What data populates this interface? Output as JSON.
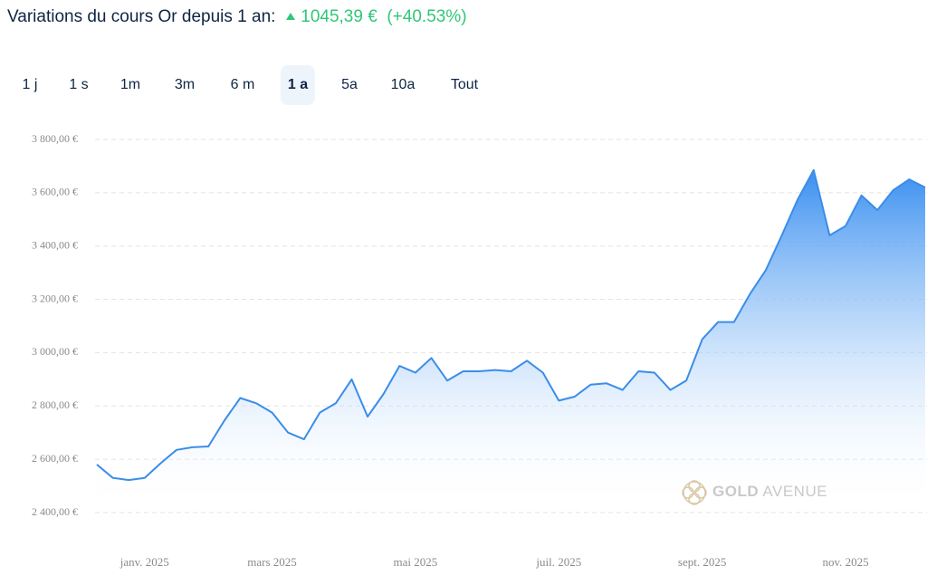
{
  "header": {
    "title": "Variations du cours Or depuis 1 an:",
    "change": "1045,39 €",
    "percent": "(+40.53%)"
  },
  "tabs": [
    "1 j",
    "1 s",
    "1m",
    "3m",
    "6 m",
    "1 a",
    "5a",
    "10a",
    "Tout"
  ],
  "active_tab": 5,
  "logo": {
    "bold": "GOLD",
    "light": "AVENUE"
  },
  "chart_data": {
    "type": "area",
    "color": "#3b8de8",
    "categories": [
      null,
      null,
      null,
      "janv. 2025",
      null,
      null,
      null,
      null,
      null,
      null,
      null,
      "mars 2025",
      null,
      null,
      null,
      null,
      null,
      null,
      null,
      null,
      "mai 2025",
      null,
      null,
      null,
      null,
      null,
      null,
      null,
      null,
      "juil. 2025",
      null,
      null,
      null,
      null,
      null,
      null,
      null,
      null,
      "sept. 2025",
      null,
      null,
      null,
      null,
      null,
      null,
      null,
      null,
      "nov. 2025",
      null,
      null,
      null,
      null,
      null
    ],
    "values": [
      2580,
      2530,
      2522,
      2530,
      2585,
      2635,
      2645,
      2648,
      2745,
      2830,
      2810,
      2775,
      2700,
      2675,
      2775,
      2810,
      2900,
      2760,
      2845,
      2950,
      2925,
      2980,
      2895,
      2930,
      2930,
      2935,
      2930,
      2970,
      2925,
      2820,
      2835,
      2880,
      2885,
      2860,
      2930,
      2925,
      2860,
      2895,
      3050,
      3115,
      3115,
      3220,
      3310,
      3440,
      3575,
      3685,
      3440,
      3475,
      3590,
      3535,
      3610,
      3650,
      3620
    ],
    "ylim": [
      2400,
      3800
    ],
    "yticks": [
      {
        "value": 2400,
        "label": "2 400,00 €"
      },
      {
        "value": 2600,
        "label": "2 600,00 €"
      },
      {
        "value": 2800,
        "label": "2 800,00 €"
      },
      {
        "value": 3000,
        "label": "3 000,00 €"
      },
      {
        "value": 3200,
        "label": "3 200,00 €"
      },
      {
        "value": 3400,
        "label": "3 400,00 €"
      },
      {
        "value": 3600,
        "label": "3 600,00 €"
      },
      {
        "value": 3800,
        "label": "3 800,00 €"
      }
    ],
    "grid": true
  }
}
